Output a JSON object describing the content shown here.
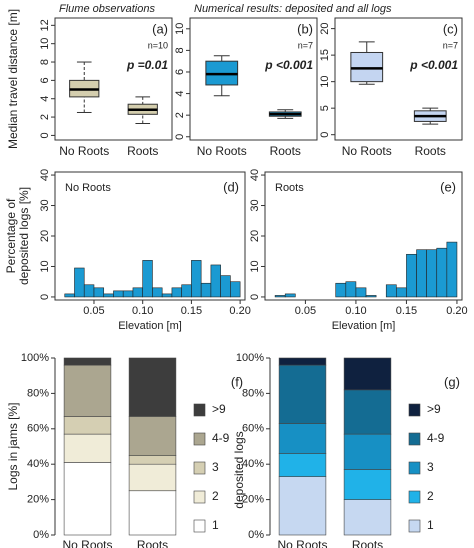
{
  "chart_data": [
    {
      "type": "box",
      "title": "Flume observations",
      "ylabel": "Median travel distance [m]",
      "panel": "(a)",
      "categories": [
        "No Roots",
        "Roots"
      ],
      "boxes": [
        {
          "whislo": 2.5,
          "q1": 4.2,
          "med": 5.0,
          "q3": 6.0,
          "whishi": 8.0
        },
        {
          "whislo": 1.3,
          "q1": 2.3,
          "med": 2.8,
          "q3": 3.4,
          "whishi": 4.2
        }
      ],
      "color": "#d4ceae",
      "ylim": [
        -0.5,
        12.8
      ],
      "yticks": [
        0,
        2,
        4,
        6,
        8,
        10,
        12
      ],
      "annotations": [
        "n=10",
        "p =0.01"
      ]
    },
    {
      "type": "box",
      "title": "Numerical results: deposited and all logs",
      "panel": "(b)",
      "categories": [
        "No Roots",
        "Roots"
      ],
      "boxes": [
        {
          "whislo": 3.8,
          "q1": 4.8,
          "med": 5.8,
          "q3": 7.0,
          "whishi": 7.5
        },
        {
          "whislo": 1.7,
          "q1": 1.9,
          "med": 2.1,
          "q3": 2.3,
          "whishi": 2.5
        }
      ],
      "color": "#1b9ad2",
      "ylim": [
        -0.3,
        11
      ],
      "yticks": [
        0,
        2,
        4,
        6,
        8,
        10
      ],
      "annotations": [
        "n=7",
        "p <0.001"
      ]
    },
    {
      "type": "box",
      "panel": "(c)",
      "categories": [
        "No Roots",
        "Roots"
      ],
      "boxes": [
        {
          "whislo": 9.5,
          "q1": 10.0,
          "med": 12.5,
          "q3": 15.5,
          "whishi": 17.5
        },
        {
          "whislo": 2.0,
          "q1": 2.5,
          "med": 3.5,
          "q3": 4.5,
          "whishi": 5.0
        }
      ],
      "color": "#c4d5f1",
      "ylim": [
        -1,
        22
      ],
      "yticks": [
        0,
        5,
        10,
        15,
        20
      ],
      "annotations": [
        "n=7",
        "p <0.001"
      ]
    },
    {
      "type": "histogram",
      "label": "No Roots",
      "panel": "(d)",
      "ylabel": [
        "Percentage of",
        "deposited logs [%]"
      ],
      "xlabel": "Elevation [m]",
      "bins": [
        0.02,
        0.03,
        0.04,
        0.05,
        0.06,
        0.07,
        0.08,
        0.09,
        0.1,
        0.11,
        0.12,
        0.13,
        0.14,
        0.15,
        0.16,
        0.17,
        0.18,
        0.19,
        0.2
      ],
      "values": [
        1,
        9.5,
        4,
        3,
        1,
        2,
        2,
        3,
        12,
        3,
        1,
        3,
        4,
        12,
        4.5,
        10.5,
        7,
        5
      ],
      "color": "#1b9ad2",
      "xlim": [
        0.01,
        0.205
      ],
      "ylim": [
        -1,
        41
      ],
      "yticks": [
        0,
        10,
        20,
        30,
        40
      ],
      "xticks": [
        0.05,
        {
          "value": 0.1,
          "label": "0.10"
        },
        0.15,
        {
          "value": 0.2,
          "label": "0.20"
        }
      ]
    },
    {
      "type": "histogram",
      "label": "Roots",
      "panel": "(e)",
      "xlabel": "Elevation [m]",
      "bins": [
        0.02,
        0.03,
        0.04,
        0.05,
        0.06,
        0.07,
        0.08,
        0.09,
        0.1,
        0.11,
        0.12,
        0.13,
        0.14,
        0.15,
        0.16,
        0.17,
        0.18,
        0.19,
        0.2
      ],
      "values": [
        0.5,
        1,
        0,
        0,
        0,
        0,
        4.5,
        5,
        3,
        0.5,
        0,
        4,
        3,
        14,
        15.5,
        15.5,
        16,
        18
      ],
      "color": "#1b9ad2",
      "xlim": [
        0.01,
        0.205
      ],
      "ylim": [
        -1,
        41
      ],
      "yticks": [
        0,
        10,
        20,
        30,
        40
      ],
      "xticks": [
        0.05,
        {
          "value": 0.1,
          "label": "0.10"
        },
        0.15,
        {
          "value": 0.2,
          "label": "0.20"
        }
      ]
    },
    {
      "type": "stacked",
      "panel": "(f)",
      "ylabel": "Logs in jams [%]",
      "legend_title": "deposited logs",
      "categories": [
        "No Roots",
        "Roots"
      ],
      "series": [
        {
          "name": "1",
          "color": "#ffffff",
          "values": [
            41,
            25
          ]
        },
        {
          "name": "2",
          "color": "#f0ecd8",
          "values": [
            16,
            15
          ]
        },
        {
          "name": "3",
          "color": "#d5cfb3",
          "values": [
            10,
            5
          ]
        },
        {
          "name": "4-9",
          "color": "#aba690",
          "values": [
            29,
            22
          ]
        },
        {
          "name": ">9",
          "color": "#3d3d3d",
          "values": [
            4,
            33
          ]
        }
      ],
      "ylim": [
        0,
        100
      ],
      "yticks": [
        {
          "value": 0,
          "label": "0%"
        },
        {
          "value": 20,
          "label": "20%"
        },
        {
          "value": 40,
          "label": "40%"
        },
        {
          "value": 60,
          "label": "60%"
        },
        {
          "value": 80,
          "label": "80%"
        },
        {
          "value": 100,
          "label": "100%"
        }
      ]
    },
    {
      "type": "stacked",
      "panel": "(g)",
      "categories": [
        "No Roots",
        "Roots"
      ],
      "series": [
        {
          "name": "1",
          "color": "#c6d8f1",
          "values": [
            33,
            20
          ]
        },
        {
          "name": "2",
          "color": "#20b2e8",
          "values": [
            13,
            17
          ]
        },
        {
          "name": "3",
          "color": "#1790c4",
          "values": [
            17,
            20
          ]
        },
        {
          "name": "4-9",
          "color": "#146c93",
          "values": [
            33,
            25
          ]
        },
        {
          "name": ">9",
          "color": "#0f213f",
          "values": [
            4,
            18
          ]
        }
      ],
      "ylim": [
        0,
        100
      ],
      "yticks": [
        {
          "value": 0,
          "label": "0%"
        },
        {
          "value": 20,
          "label": "20%"
        },
        {
          "value": 40,
          "label": "40%"
        },
        {
          "value": 60,
          "label": "60%"
        },
        {
          "value": 80,
          "label": "80%"
        },
        {
          "value": 100,
          "label": "100%"
        }
      ]
    }
  ]
}
